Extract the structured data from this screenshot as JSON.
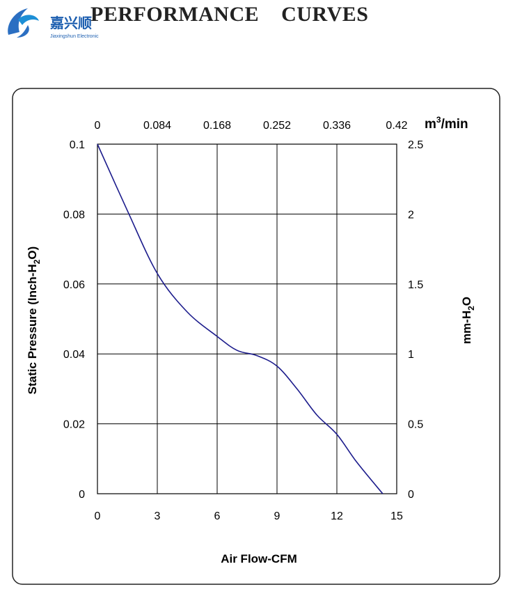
{
  "header": {
    "title": "PERFORMANCE    CURVES",
    "logo_text_cn": "嘉兴顺",
    "logo_text_en": "Jiaxingshun Electronic"
  },
  "chart_data": {
    "type": "line",
    "title": "PERFORMANCE CURVES",
    "xlabel": "Air Flow-CFM",
    "ylabel": "Static Pressure (Inch-H2O)",
    "x2label": "m³/min",
    "y2label": "mm-H2O",
    "xlim": [
      0,
      15
    ],
    "ylim": [
      0,
      0.1
    ],
    "x_ticks": [
      "0",
      "3",
      "6",
      "9",
      "12",
      "15"
    ],
    "y_ticks": [
      "0",
      "0.02",
      "0.04",
      "0.06",
      "0.08",
      "0.1"
    ],
    "x2_ticks": [
      "0",
      "0.084",
      "0.168",
      "0.252",
      "0.336",
      "0.42"
    ],
    "y2_ticks": [
      "0",
      "0.5",
      "1",
      "1.5",
      "2",
      "2.5"
    ],
    "grid": true,
    "line_color": "#1c1c8c",
    "series": [
      {
        "name": "Static Pressure",
        "x": [
          0,
          1.5,
          3,
          4.5,
          6,
          7,
          8,
          9,
          10,
          11,
          12,
          13,
          14.3
        ],
        "y": [
          0.1,
          0.081,
          0.063,
          0.052,
          0.045,
          0.041,
          0.0395,
          0.0365,
          0.03,
          0.0225,
          0.017,
          0.009,
          0.0
        ]
      }
    ]
  }
}
